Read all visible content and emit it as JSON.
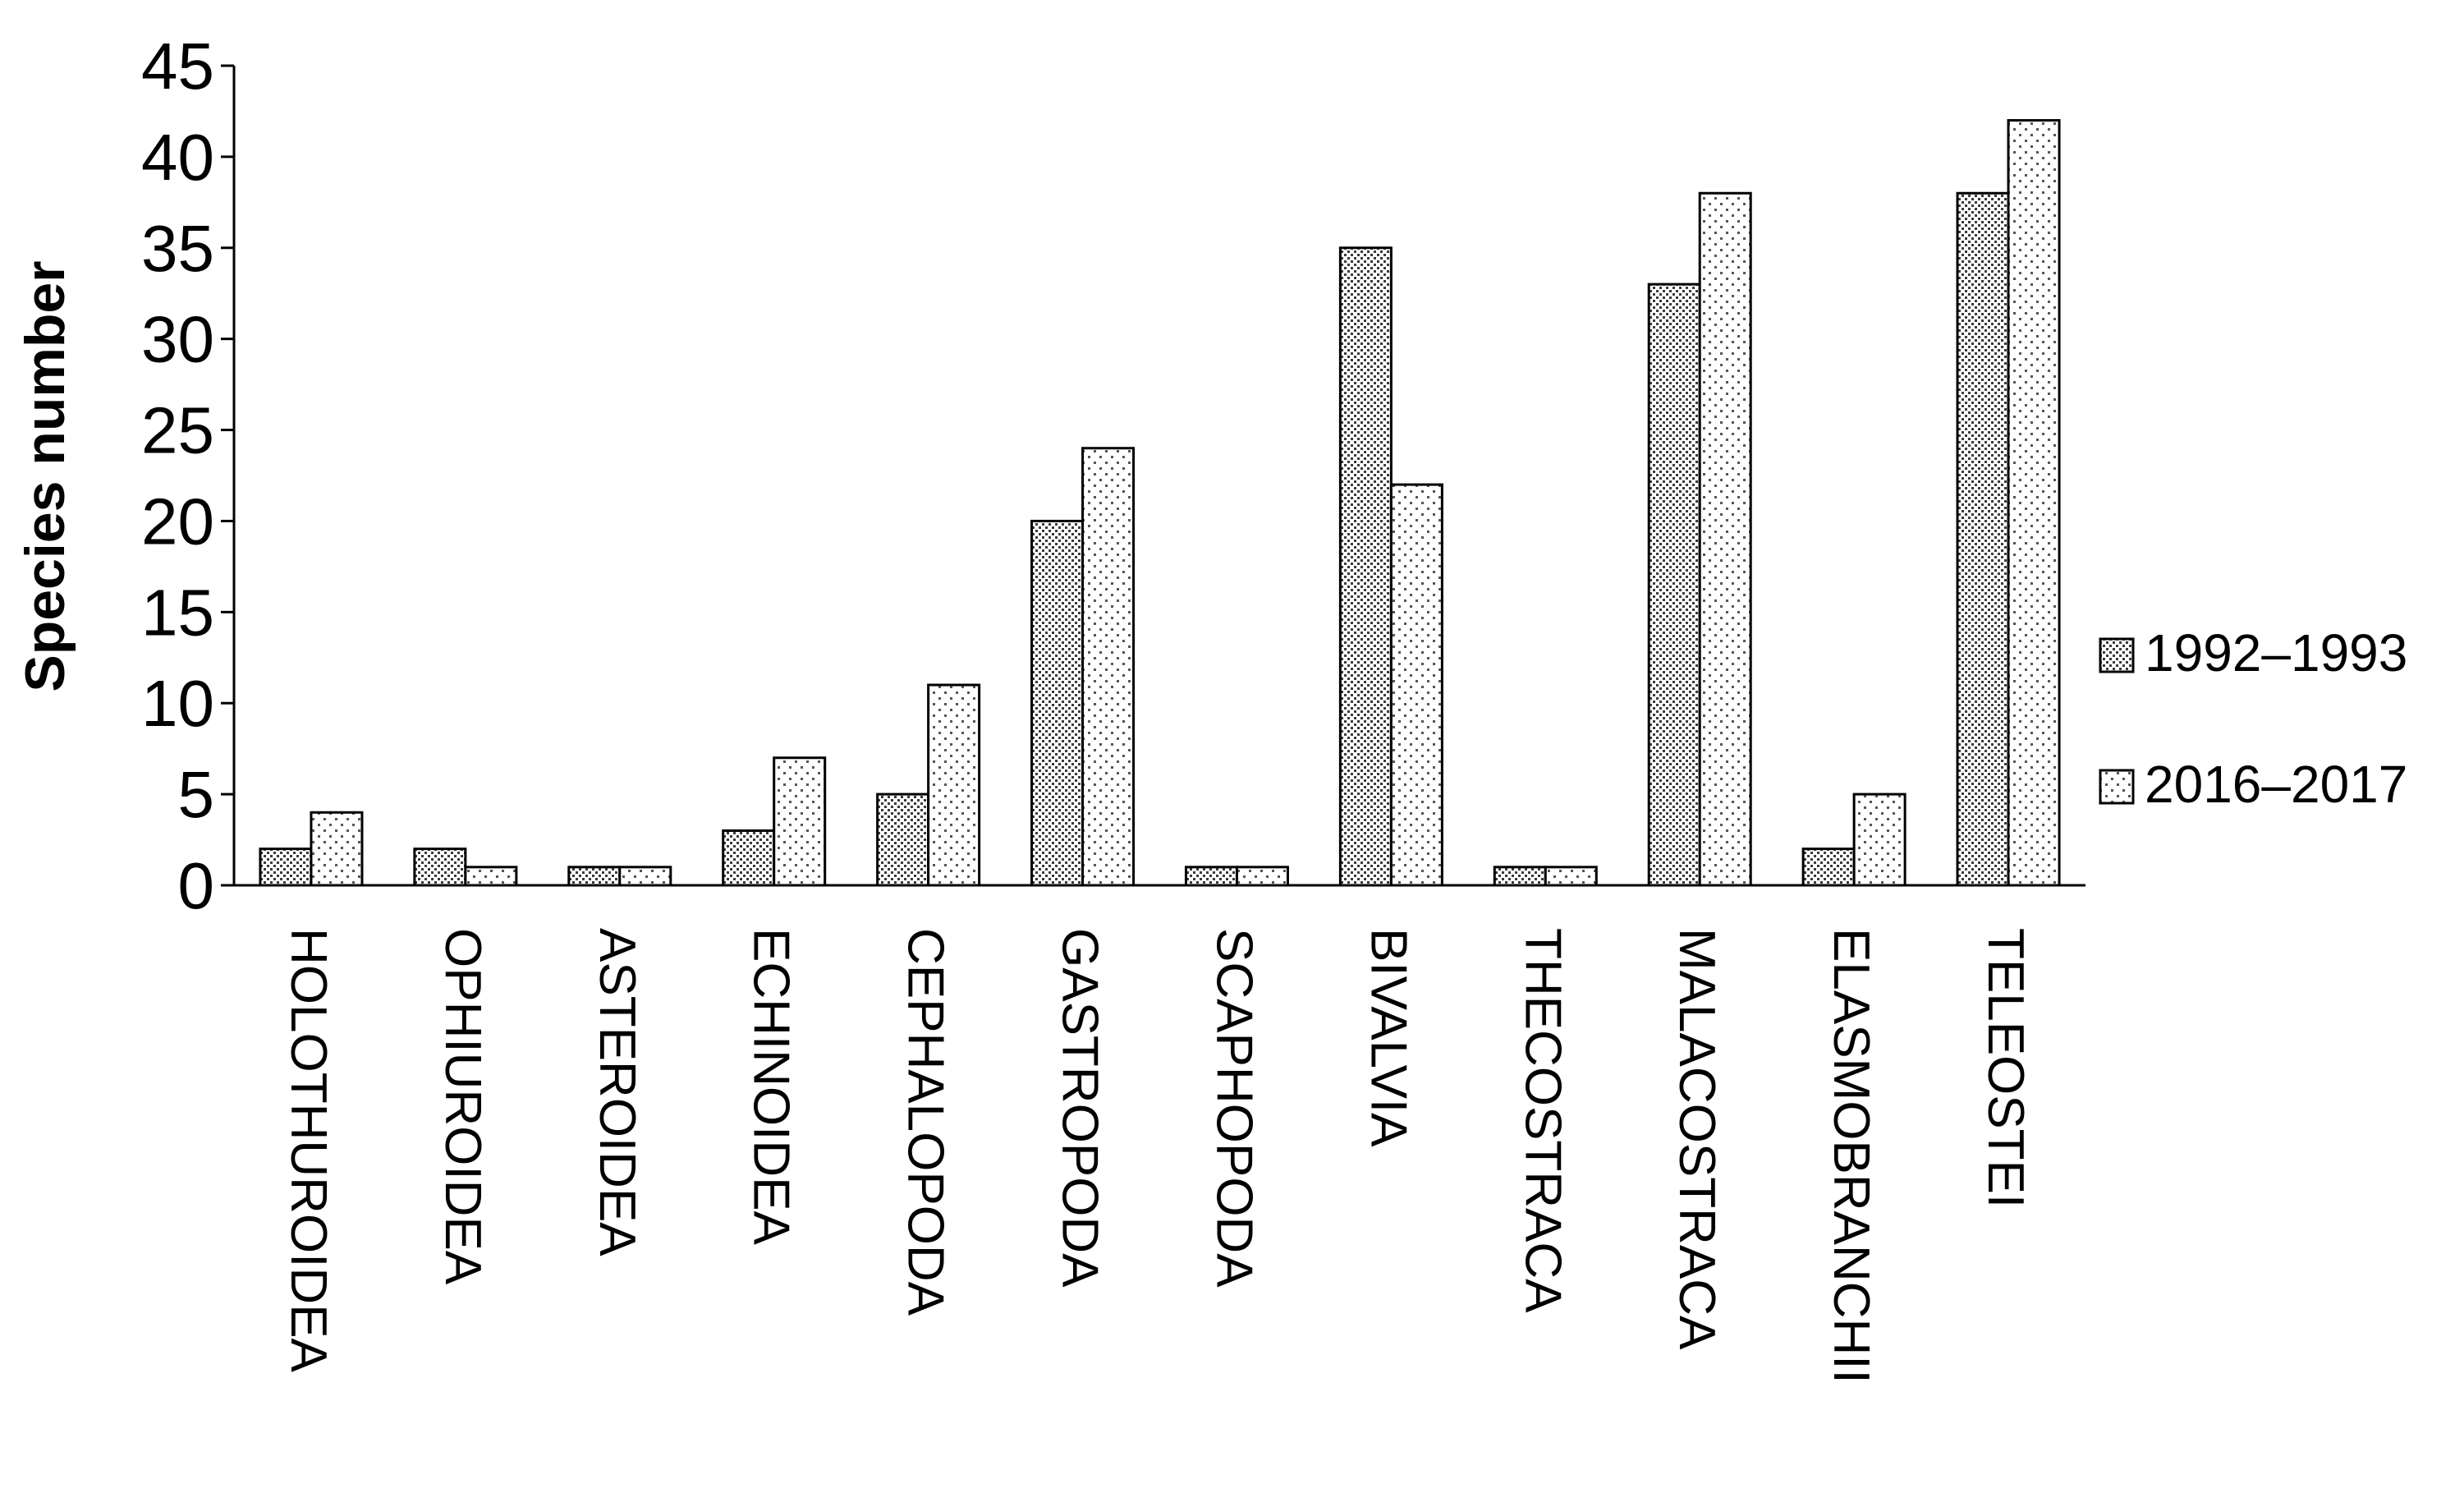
{
  "chart_data": {
    "type": "bar",
    "ylabel": "Species number",
    "xlabel": "",
    "ylim": [
      0,
      45
    ],
    "yticks": [
      0,
      5,
      10,
      15,
      20,
      25,
      30,
      35,
      40,
      45
    ],
    "grid": false,
    "legend_position": "right",
    "categories": [
      "HOLOTHUROIDEA",
      "OPHIUROIDEA",
      "ASTEROIDEA",
      "ECHINOIDEA",
      "CEPHALOPODA",
      "GASTROPODA",
      "SCAPHOPODA",
      "BIVALVIA",
      "THECOSTRACA",
      "MALACOSTRACA",
      "ELASMOBRANCHII",
      "TELEOSTEI"
    ],
    "series": [
      {
        "name": "1992–1993",
        "pattern": "dense-dots",
        "values": [
          2,
          2,
          1,
          3,
          5,
          20,
          1,
          35,
          1,
          33,
          2,
          38
        ]
      },
      {
        "name": "2016–2017",
        "pattern": "sparse-dots",
        "values": [
          4,
          1,
          1,
          7,
          11,
          24,
          1,
          22,
          1,
          38,
          5,
          42
        ]
      }
    ],
    "colors": {
      "axis": "#000000",
      "dense_dot": "#444444",
      "sparse_dot": "#555555",
      "fill": "#ffffff"
    }
  }
}
